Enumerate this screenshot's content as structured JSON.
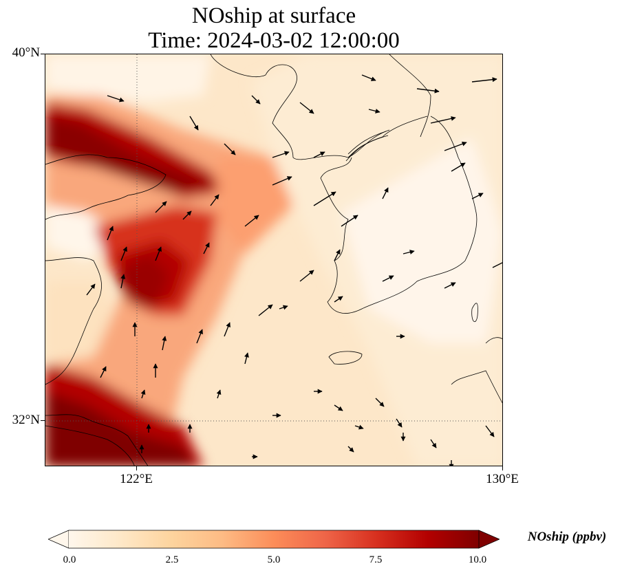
{
  "map": {
    "title_line1": "NOship at surface",
    "title_line2": "Time: 2024-03-02 12:00:00",
    "lat_labels": [
      "40°N",
      "32°N"
    ],
    "lon_labels": [
      "122°E",
      "130°E"
    ],
    "extent": {
      "lon_min": 120,
      "lon_max": 130,
      "lat_min": 31,
      "lat_max": 40
    },
    "gridlines": {
      "lon": [
        122
      ],
      "lat": [
        32
      ],
      "style": "dotted"
    },
    "basemap": "coastlines",
    "field": {
      "variable": "NOship",
      "units": "ppbv",
      "description_of_pattern": "high values along ship lanes in the Yellow Sea and East China Sea near the Chinese coast, low values over the Korean peninsula"
    },
    "wind_vectors": "arrows showing near-surface wind, mostly north-eastward"
  },
  "colorbar": {
    "label": "NOship (ppbv)",
    "ticks": [
      "0.0",
      "2.5",
      "5.0",
      "7.5",
      "10.0"
    ],
    "min": 0,
    "max": 10,
    "extend": "both",
    "colormap": "OrRd",
    "colors": [
      "#fff7ec",
      "#fee8c8",
      "#fdd49e",
      "#fdbb84",
      "#fc8d59",
      "#ef6548",
      "#d7301f",
      "#b30000",
      "#7f0000"
    ]
  }
}
